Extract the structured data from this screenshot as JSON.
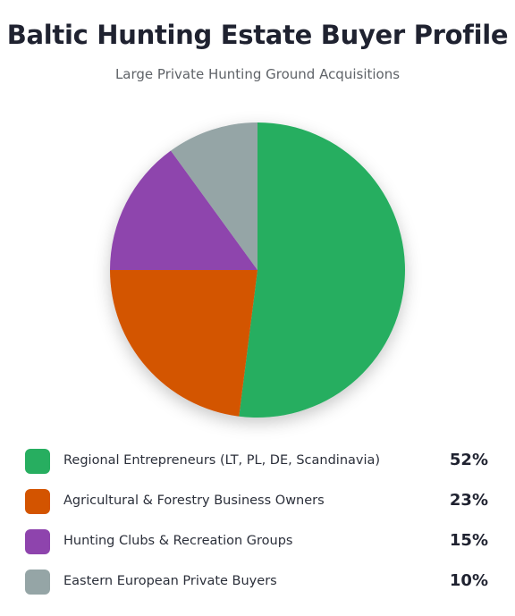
{
  "title": "Baltic Hunting Estate Buyer Profile",
  "subtitle": "Large Private Hunting Ground Acquisitions",
  "chart_data": {
    "type": "pie",
    "title": "Baltic Hunting Estate Buyer Profile",
    "subtitle": "Large Private Hunting Ground Acquisitions",
    "legend_position": "bottom",
    "slices": [
      {
        "label": "Regional Entrepreneurs (LT, PL, DE, Scandinavia)",
        "value": 52,
        "display": "52%",
        "color": "#27ae60"
      },
      {
        "label": "Agricultural & Forestry Business Owners",
        "value": 23,
        "display": "23%",
        "color": "#d35400"
      },
      {
        "label": "Hunting Clubs & Recreation Groups",
        "value": 15,
        "display": "15%",
        "color": "#8e44ad"
      },
      {
        "label": "Eastern European Private Buyers",
        "value": 10,
        "display": "10%",
        "color": "#95a5a6"
      }
    ]
  }
}
